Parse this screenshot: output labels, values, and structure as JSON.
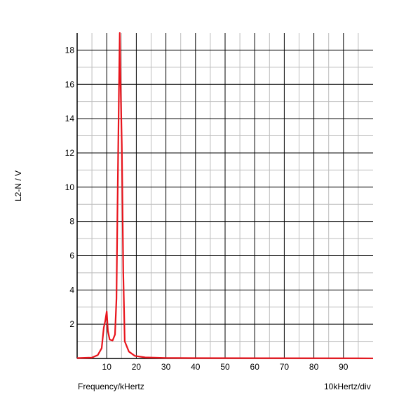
{
  "chart_data": {
    "type": "line",
    "ylabel": "L2-N / V",
    "xlabel": "Frequency/kHertz",
    "scale_label": "10kHertz/div",
    "xlim": [
      0,
      100
    ],
    "ylim": [
      0,
      19
    ],
    "x_ticks": [
      10,
      20,
      30,
      40,
      50,
      60,
      70,
      80,
      90
    ],
    "y_ticks": [
      2,
      4,
      6,
      8,
      10,
      12,
      14,
      16,
      18
    ],
    "grid": true,
    "series": [
      {
        "color": "#e8141c",
        "points": [
          [
            0,
            0.02
          ],
          [
            5,
            0.05
          ],
          [
            7,
            0.2
          ],
          [
            8.3,
            0.6
          ],
          [
            9,
            1.8
          ],
          [
            9.5,
            2.2
          ],
          [
            10,
            2.75
          ],
          [
            10.4,
            1.6
          ],
          [
            11,
            1.1
          ],
          [
            12,
            1.05
          ],
          [
            12.8,
            1.4
          ],
          [
            13.3,
            3.5
          ],
          [
            13.6,
            8.3
          ],
          [
            14.1,
            15.3
          ],
          [
            14.4,
            19.0
          ],
          [
            14.7,
            16.0
          ],
          [
            15.1,
            12.5
          ],
          [
            15.6,
            5.0
          ],
          [
            16.1,
            1.0
          ],
          [
            17.5,
            0.4
          ],
          [
            19.5,
            0.15
          ],
          [
            23,
            0.06
          ],
          [
            30,
            0.03
          ],
          [
            40,
            0.02
          ],
          [
            100,
            0.01
          ]
        ]
      }
    ]
  }
}
